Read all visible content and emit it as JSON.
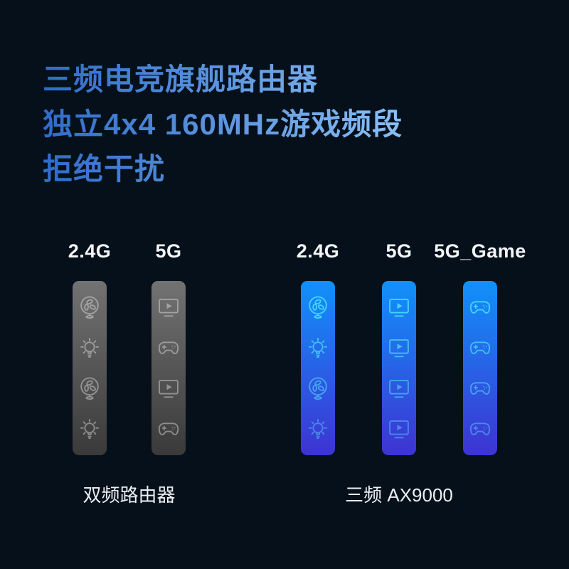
{
  "title": {
    "lines": [
      "三频电竞旗舰路由器",
      "独立4x4 160MHz游戏频段",
      "拒绝干扰"
    ]
  },
  "groups": [
    {
      "caption": "双频路由器",
      "theme": "gray",
      "columns": [
        {
          "label": "2.4G",
          "icons": [
            "fan-icon",
            "bulb-icon",
            "fan-icon",
            "bulb-icon"
          ]
        },
        {
          "label": "5G",
          "icons": [
            "tv-icon",
            "gamepad-icon",
            "tv-icon",
            "gamepad-icon"
          ]
        }
      ]
    },
    {
      "caption": "三频 AX9000",
      "theme": "blue",
      "columns": [
        {
          "label": "2.4G",
          "icons": [
            "fan-icon",
            "bulb-icon",
            "fan-icon",
            "bulb-icon"
          ]
        },
        {
          "label": "5G",
          "icons": [
            "tv-icon",
            "tv-icon",
            "tv-icon",
            "tv-icon"
          ]
        },
        {
          "label": "5G_Game",
          "icons": [
            "gamepad-icon",
            "gamepad-icon",
            "gamepad-icon",
            "gamepad-icon"
          ]
        }
      ]
    }
  ],
  "colors": {
    "background": "#05101a",
    "title_blue_dark": "#2f6bca",
    "title_blue_light": "#8fc3f6",
    "band_label_text": "#f4f6f8",
    "caption_text": "#edf0f3",
    "gray_bar_top": "#727272",
    "gray_bar_bottom": "#3a3a3a",
    "gray_icon": "#8c8c8c",
    "blue_bar_top": "#1191fa",
    "blue_bar_bottom": "#3e33d2",
    "icon_cyan_top": "#41d4fa",
    "icon_cyan_bottom": "#4a88e8"
  }
}
